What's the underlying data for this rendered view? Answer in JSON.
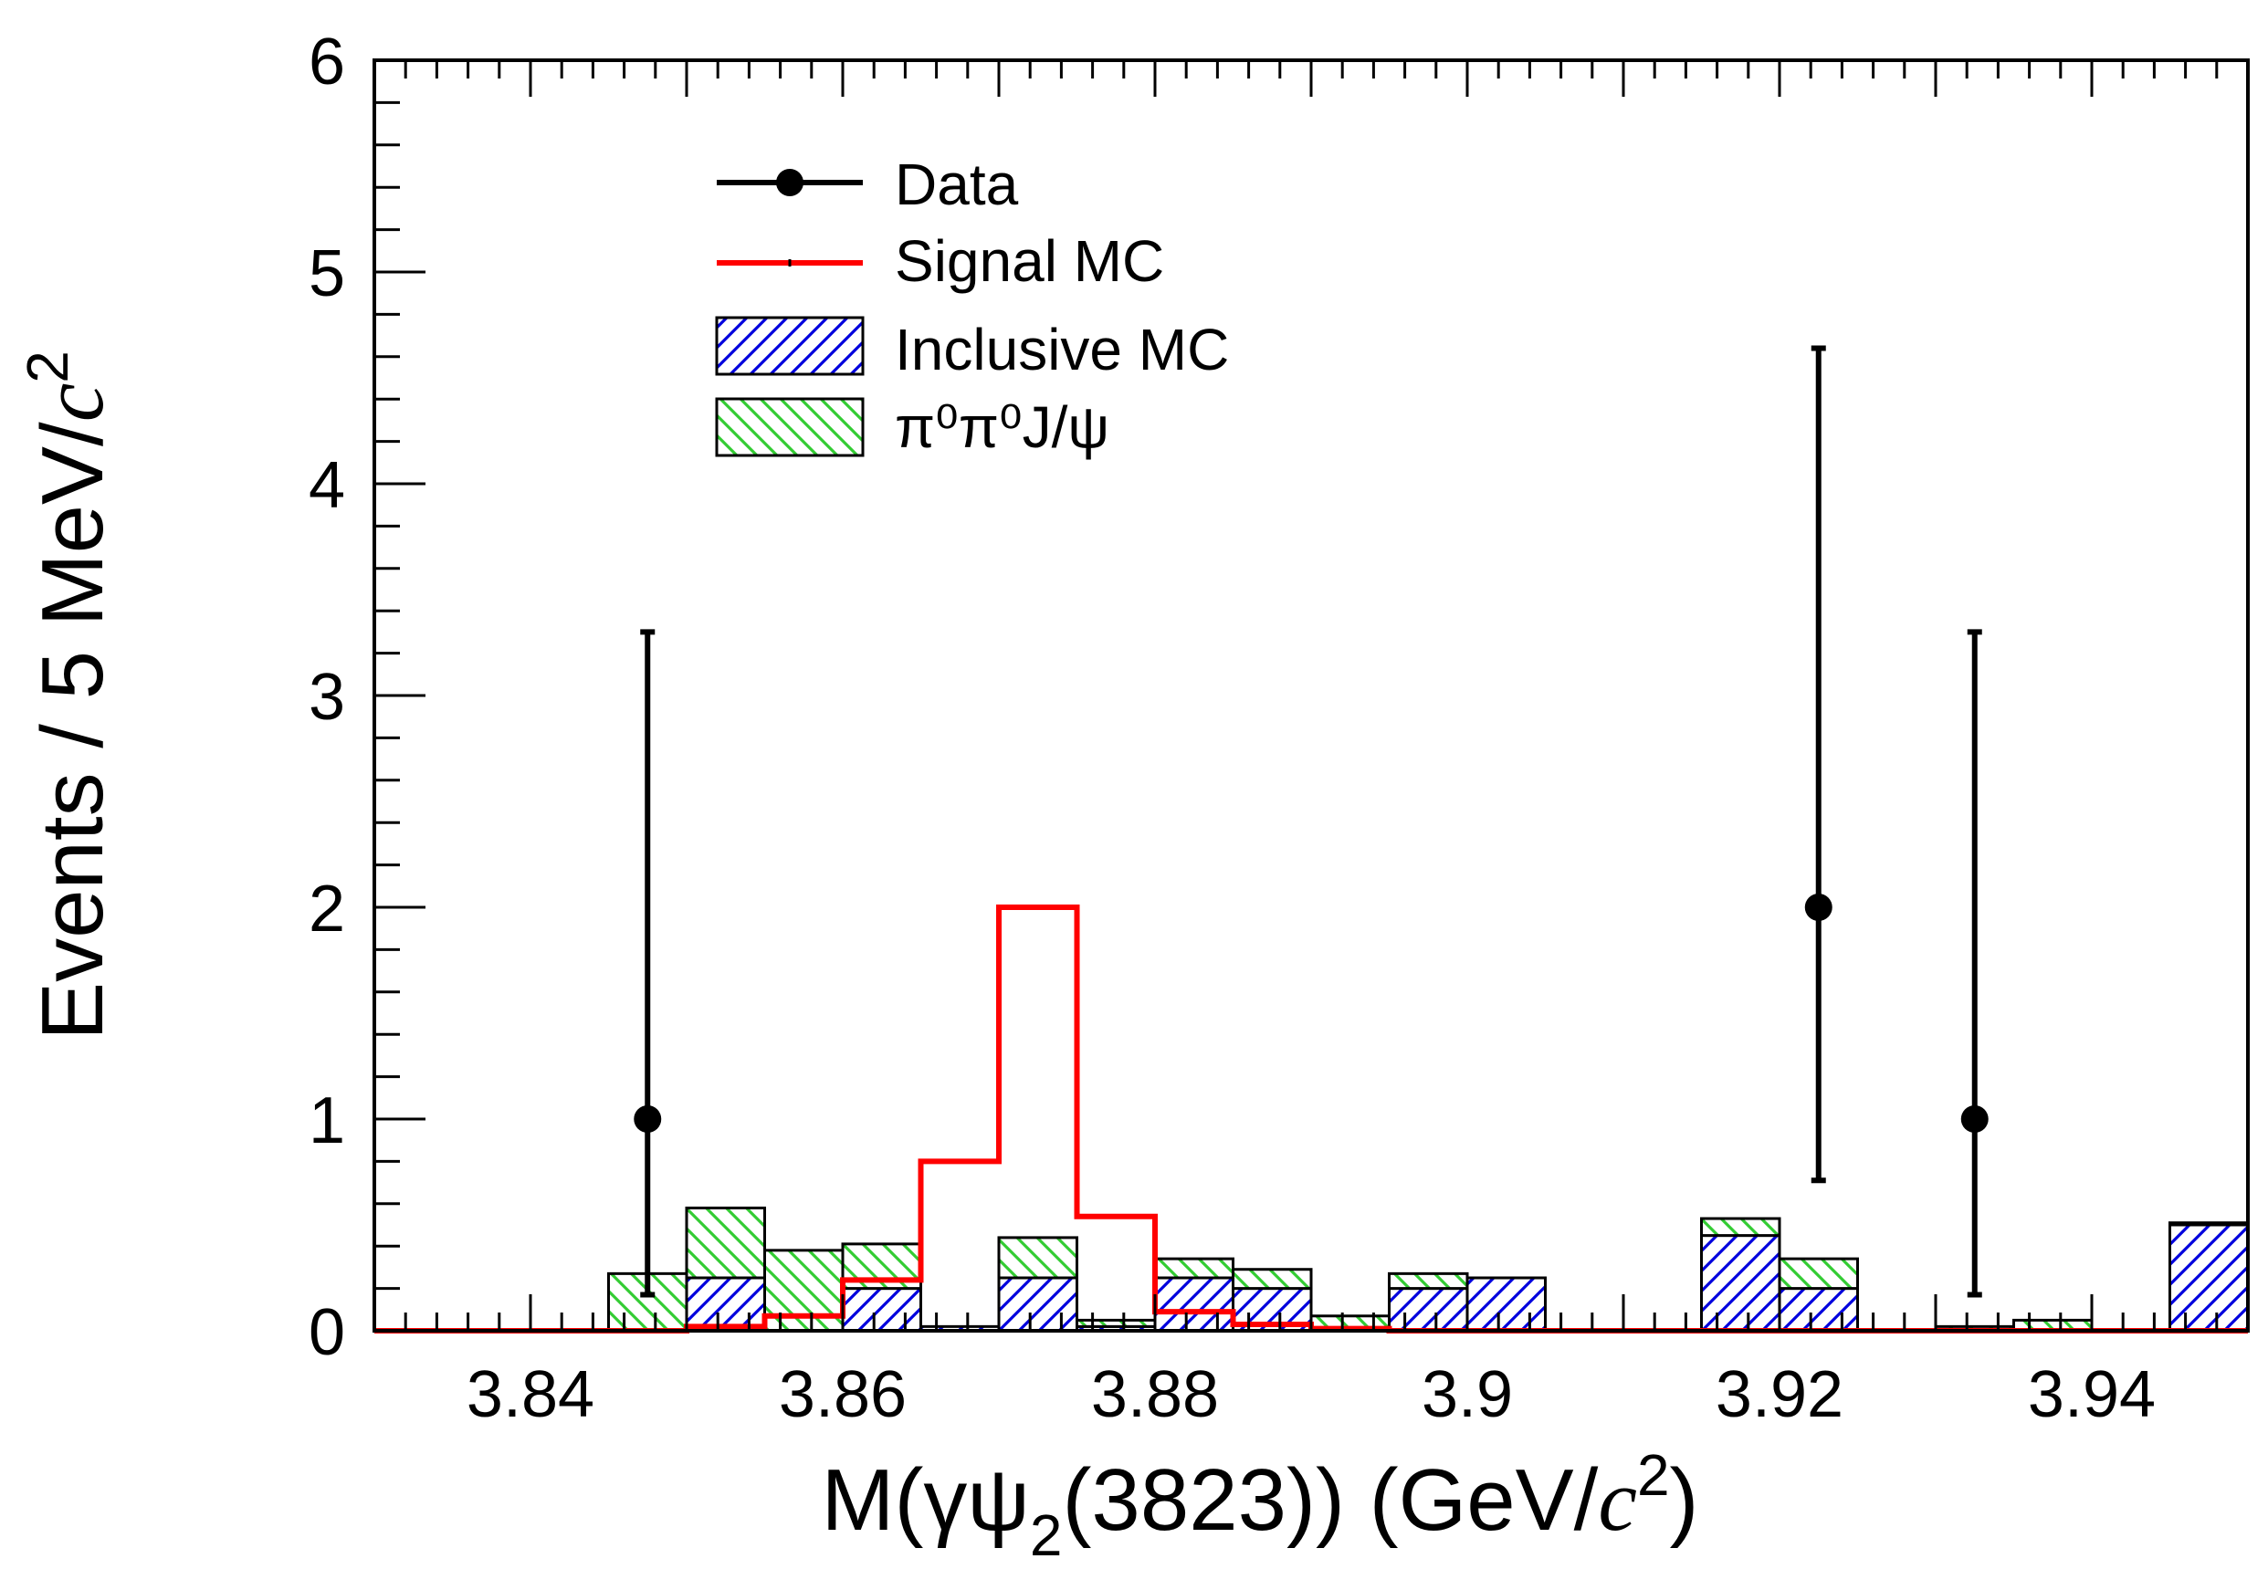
{
  "chart_data": {
    "type": "histogram",
    "title": "",
    "xlabel": {
      "main": "M(γψ",
      "sub": "2",
      "mid": "(3823)) (GeV/",
      "italic": "c",
      "sup": "2",
      "end": ")"
    },
    "ylabel": {
      "main": "Events / 5 MeV/",
      "italic": "c",
      "sup": "2"
    },
    "xlim": [
      3.83,
      3.95
    ],
    "ylim": [
      0,
      6
    ],
    "bin_width": 0.005,
    "x_ticks": [
      3.84,
      3.86,
      3.88,
      3.9,
      3.92,
      3.94
    ],
    "x_tick_labels": [
      "3.84",
      "3.86",
      "3.88",
      "3.9",
      "3.92",
      "3.94"
    ],
    "y_ticks": [
      0,
      1,
      2,
      3,
      4,
      5,
      6
    ],
    "y_tick_labels": [
      "0",
      "1",
      "2",
      "3",
      "4",
      "5",
      "6"
    ],
    "bin_edges": [
      3.83,
      3.835,
      3.84,
      3.845,
      3.85,
      3.855,
      3.86,
      3.865,
      3.87,
      3.875,
      3.88,
      3.885,
      3.89,
      3.895,
      3.9,
      3.905,
      3.91,
      3.915,
      3.92,
      3.925,
      3.93,
      3.935,
      3.94,
      3.945,
      3.95
    ],
    "series": [
      {
        "name": "Inclusive MC",
        "kind": "hist-hatched",
        "color": "#0000dd",
        "values": [
          0,
          0,
          0,
          0,
          0.25,
          0,
          0.2,
          0.02,
          0.25,
          0.02,
          0.25,
          0.2,
          0,
          0.2,
          0.25,
          0,
          0,
          0.45,
          0.2,
          0,
          0,
          0,
          0,
          0.5
        ]
      },
      {
        "name": "π⁰π⁰J/ψ",
        "kind": "hist-hatched",
        "color": "#33cc33",
        "values": [
          0,
          0,
          0,
          0.27,
          0.33,
          0.38,
          0.21,
          0,
          0.19,
          0.03,
          0.09,
          0.09,
          0.07,
          0.07,
          0,
          0,
          0,
          0.08,
          0.14,
          0,
          0.02,
          0.05,
          0,
          0.01
        ]
      },
      {
        "name": "Signal MC",
        "kind": "hist-line",
        "color": "#ff0000",
        "values": [
          0,
          0,
          0,
          0,
          0.02,
          0.07,
          0.24,
          0.8,
          2.0,
          0.54,
          0.09,
          0.03,
          0.01,
          0,
          0,
          0,
          0,
          0,
          0,
          0,
          0,
          0,
          0,
          0
        ]
      },
      {
        "name": "Data",
        "kind": "points",
        "color": "#000000",
        "points": [
          {
            "x": 3.8475,
            "y": 1,
            "err_low": 0.83,
            "err_high": 2.3
          },
          {
            "x": 3.9225,
            "y": 2,
            "err_low": 1.29,
            "err_high": 2.64
          },
          {
            "x": 3.9325,
            "y": 1,
            "err_low": 0.83,
            "err_high": 2.3
          }
        ]
      }
    ],
    "legend": {
      "position": "top-left",
      "entries": [
        {
          "label": "Data",
          "symbol": "marker-line"
        },
        {
          "label": "Signal MC",
          "symbol": "red-line"
        },
        {
          "label": "Inclusive MC",
          "symbol": "blue-hatch"
        },
        {
          "label": "π⁰π⁰J/ψ",
          "symbol": "green-hatch"
        }
      ]
    }
  }
}
